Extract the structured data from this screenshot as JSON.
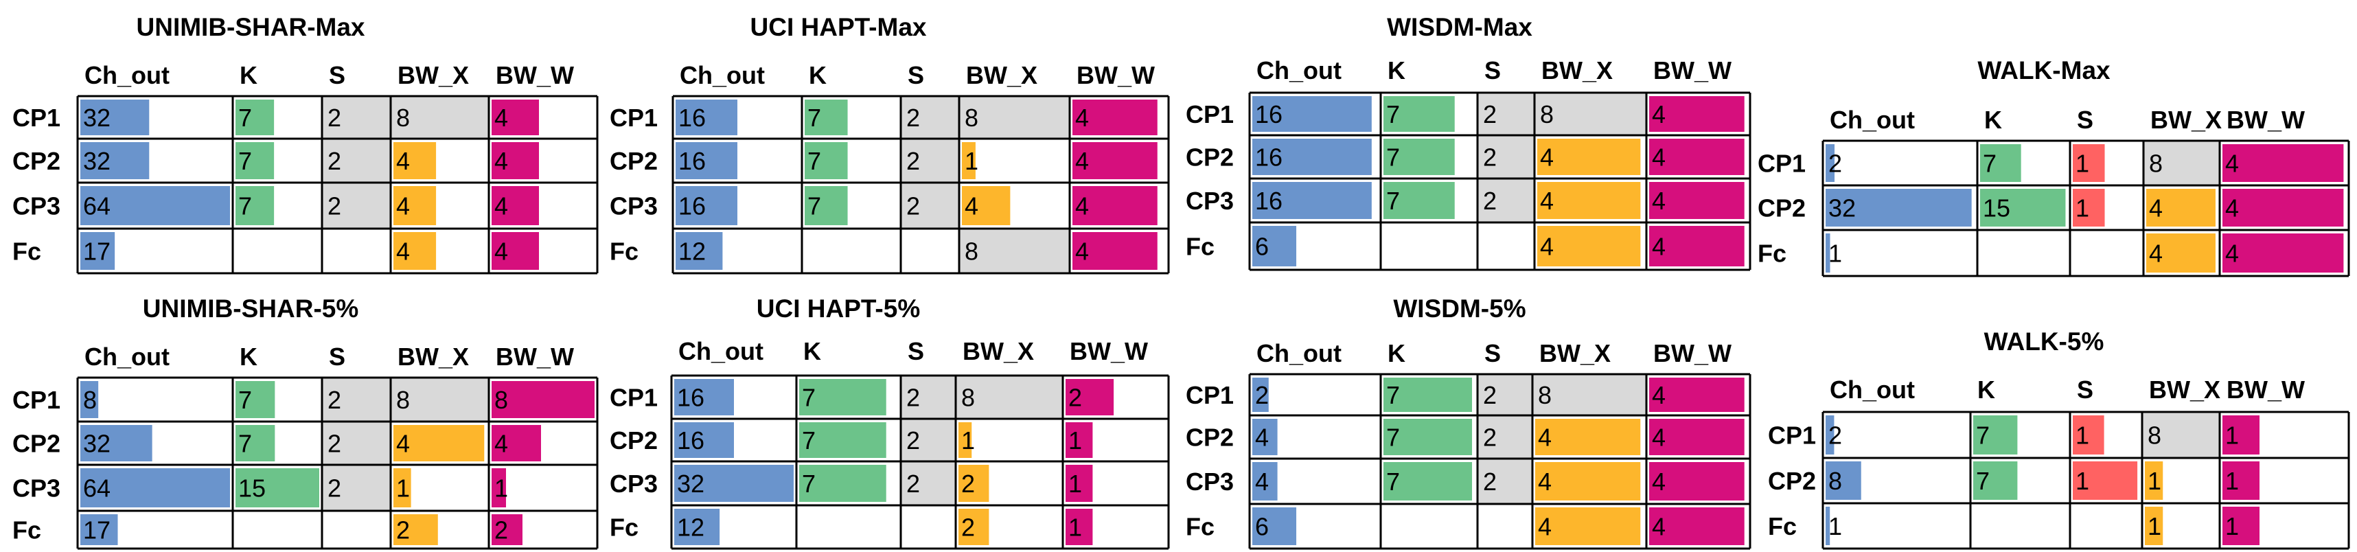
{
  "colors": {
    "ch_out": "#6a94cc",
    "k": "#6cc38a",
    "s": "#ff6262",
    "bw_x": "#fdb62c",
    "bw_w": "#d60f7d",
    "gray_cell": "#d9d9d9",
    "border": "#000000",
    "text": "#000000"
  },
  "columns": [
    "Ch_out",
    "K",
    "S",
    "BW_X",
    "BW_W"
  ],
  "chart_data": [
    {
      "type": "table",
      "title": "UNIMIB-SHAR-Max",
      "rows": [
        "CP1",
        "CP2",
        "CP3",
        "Fc"
      ],
      "values": [
        [
          32,
          7,
          2,
          8,
          4
        ],
        [
          32,
          7,
          2,
          4,
          4
        ],
        [
          64,
          7,
          2,
          4,
          4
        ],
        [
          17,
          null,
          null,
          4,
          4
        ]
      ],
      "bar_fraction": [
        [
          0.46,
          0.46,
          0.13,
          1,
          0.46
        ],
        [
          0.46,
          0.46,
          0.13,
          0.46,
          0.46
        ],
        [
          1,
          0.46,
          0.13,
          0.46,
          0.46
        ],
        [
          0.23,
          0,
          0,
          0.46,
          0.46
        ]
      ]
    },
    {
      "type": "table",
      "title": "UCI HAPT-Max",
      "rows": [
        "CP1",
        "CP2",
        "CP3",
        "Fc"
      ],
      "values": [
        [
          16,
          7,
          2,
          8,
          4
        ],
        [
          16,
          7,
          2,
          1,
          4
        ],
        [
          16,
          7,
          2,
          4,
          4
        ],
        [
          12,
          null,
          null,
          8,
          4
        ]
      ],
      "bar_fraction": [
        [
          0.5,
          0.46,
          0.13,
          1,
          0.91
        ],
        [
          0.5,
          0.46,
          0.13,
          0.13,
          0.91
        ],
        [
          0.5,
          0.46,
          0.13,
          0.46,
          0.91
        ],
        [
          0.38,
          0,
          0,
          0.91,
          0.91
        ]
      ]
    },
    {
      "type": "table",
      "title": "WISDM-Max",
      "rows": [
        "CP1",
        "CP2",
        "CP3",
        "Fc"
      ],
      "values": [
        [
          16,
          7,
          2,
          8,
          4
        ],
        [
          16,
          7,
          2,
          4,
          4
        ],
        [
          16,
          7,
          2,
          4,
          4
        ],
        [
          6,
          null,
          null,
          4,
          4
        ]
      ],
      "bar_fraction": [
        [
          0.95,
          0.78,
          0.13,
          1,
          0.97
        ],
        [
          0.95,
          0.78,
          0.13,
          0.97,
          0.97
        ],
        [
          0.95,
          0.78,
          0.13,
          0.97,
          0.97
        ],
        [
          0.35,
          0,
          0,
          0.97,
          0.97
        ]
      ]
    },
    {
      "type": "table",
      "title": "WALK-Max",
      "rows": [
        "CP1",
        "CP2",
        "Fc"
      ],
      "values": [
        [
          2,
          7,
          1,
          8,
          4
        ],
        [
          32,
          15,
          1,
          4,
          4
        ],
        [
          1,
          null,
          null,
          4,
          4
        ]
      ],
      "bar_fraction": [
        [
          0.06,
          0.47,
          0.47,
          1,
          0.98
        ],
        [
          0.98,
          0.98,
          0.47,
          0.98,
          0.98
        ],
        [
          0.03,
          0,
          0,
          0.98,
          0.98
        ]
      ]
    },
    {
      "type": "table",
      "title": "UNIMIB-SHAR-5%",
      "rows": [
        "CP1",
        "CP2",
        "CP3",
        "Fc"
      ],
      "values": [
        [
          8,
          7,
          2,
          8,
          8
        ],
        [
          32,
          7,
          2,
          4,
          4
        ],
        [
          64,
          15,
          2,
          1,
          1
        ],
        [
          17,
          null,
          null,
          2,
          2
        ]
      ],
      "bar_fraction": [
        [
          0.12,
          0.47,
          0.13,
          1,
          1
        ],
        [
          0.48,
          0.47,
          0.13,
          0.98,
          0.48
        ],
        [
          1,
          1,
          0.13,
          0.19,
          0.14
        ],
        [
          0.25,
          0,
          0,
          0.48,
          0.3
        ]
      ]
    },
    {
      "type": "table",
      "title": "UCI HAPT-5%",
      "rows": [
        "CP1",
        "CP2",
        "CP3",
        "Fc"
      ],
      "values": [
        [
          16,
          7,
          2,
          8,
          2
        ],
        [
          16,
          7,
          2,
          1,
          1
        ],
        [
          32,
          7,
          2,
          2,
          1
        ],
        [
          12,
          null,
          null,
          2,
          1
        ]
      ],
      "bar_fraction": [
        [
          0.5,
          0.88,
          0.13,
          1,
          0.48
        ],
        [
          0.5,
          0.88,
          0.13,
          0.13,
          0.27
        ],
        [
          1,
          0.88,
          0.13,
          0.3,
          0.27
        ],
        [
          0.38,
          0,
          0,
          0.3,
          0.27
        ]
      ]
    },
    {
      "type": "table",
      "title": "WISDM-5%",
      "rows": [
        "CP1",
        "CP2",
        "CP3",
        "Fc"
      ],
      "values": [
        [
          2,
          7,
          2,
          8,
          4
        ],
        [
          4,
          7,
          2,
          4,
          4
        ],
        [
          4,
          7,
          2,
          4,
          4
        ],
        [
          6,
          null,
          null,
          4,
          4
        ]
      ],
      "bar_fraction": [
        [
          0.13,
          0.97,
          0.13,
          1,
          0.97
        ],
        [
          0.2,
          0.97,
          0.13,
          0.97,
          0.97
        ],
        [
          0.2,
          0.97,
          0.13,
          0.97,
          0.97
        ],
        [
          0.35,
          0,
          0,
          0.97,
          0.97
        ]
      ]
    },
    {
      "type": "table",
      "title": "WALK-5%",
      "rows": [
        "CP1",
        "CP2",
        "Fc"
      ],
      "values": [
        [
          2,
          7,
          1,
          8,
          1
        ],
        [
          8,
          7,
          1,
          1,
          1
        ],
        [
          1,
          null,
          null,
          1,
          1
        ]
      ],
      "bar_fraction": [
        [
          0.06,
          0.47,
          0.47,
          1,
          0.3
        ],
        [
          0.25,
          0.47,
          0.97,
          0.25,
          0.3
        ],
        [
          0.03,
          0,
          0,
          0.25,
          0.3
        ]
      ]
    }
  ]
}
